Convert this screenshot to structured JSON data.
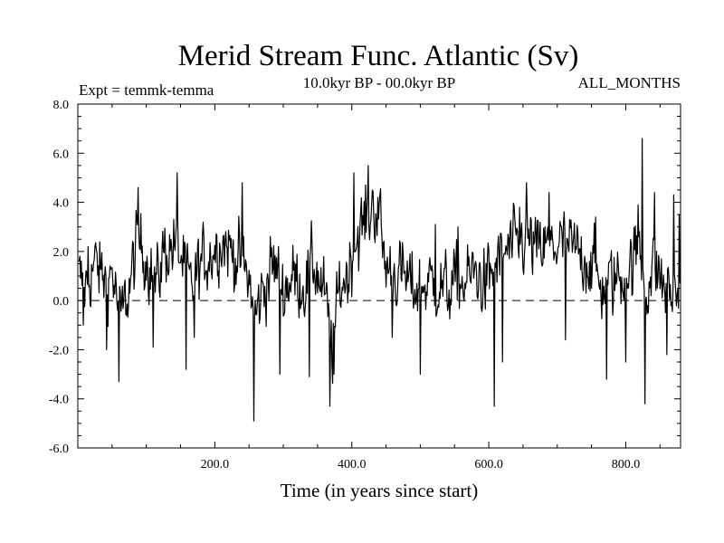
{
  "chart_data": {
    "type": "line",
    "title": "Merid Stream Func. Atlantic (Sv)",
    "subtitle_left": "Expt = temmk-temma",
    "subtitle_center": "10.0kyr BP - 00.0kyr BP",
    "subtitle_right": "ALL_MONTHS",
    "xlabel": "Time (in years since start)",
    "ylabel": "",
    "xlim": [
      0,
      880
    ],
    "ylim": [
      -6.0,
      8.0
    ],
    "x_ticks": [
      200,
      400,
      600,
      800
    ],
    "x_tick_labels": [
      "200.0",
      "400.0",
      "600.0",
      "800.0"
    ],
    "y_ticks": [
      -6,
      -4,
      -2,
      0,
      2,
      4,
      6,
      8
    ],
    "y_tick_labels": [
      "-6.0",
      "-4.0",
      "-2.0",
      "0.0",
      "2.0",
      "4.0",
      "6.0",
      "8.0"
    ],
    "reference_line_y": 0.0,
    "series": [
      {
        "name": "Merid Stream Func. Atlantic",
        "x_start": 1,
        "x_step": 1,
        "anchors": [
          [
            0,
            1.0
          ],
          [
            10,
            0.5
          ],
          [
            25,
            1.5
          ],
          [
            40,
            0.8
          ],
          [
            50,
            1.2
          ],
          [
            62,
            -0.8
          ],
          [
            75,
            0.5
          ],
          [
            88,
            2.5
          ],
          [
            100,
            1.8
          ],
          [
            115,
            0.6
          ],
          [
            125,
            2.0
          ],
          [
            140,
            2.2
          ],
          [
            150,
            1.8
          ],
          [
            165,
            0.5
          ],
          [
            180,
            1.5
          ],
          [
            195,
            2.0
          ],
          [
            210,
            2.5
          ],
          [
            225,
            2.0
          ],
          [
            240,
            1.5
          ],
          [
            252,
            0.6
          ],
          [
            258,
            -0.8
          ],
          [
            270,
            0.4
          ],
          [
            285,
            1.5
          ],
          [
            300,
            0.5
          ],
          [
            315,
            1.0
          ],
          [
            330,
            0.6
          ],
          [
            345,
            1.5
          ],
          [
            360,
            0.2
          ],
          [
            372,
            -2.0
          ],
          [
            382,
            0.5
          ],
          [
            395,
            1.2
          ],
          [
            405,
            2.5
          ],
          [
            420,
            3.2
          ],
          [
            432,
            3.8
          ],
          [
            440,
            3.5
          ],
          [
            448,
            1.5
          ],
          [
            460,
            1.2
          ],
          [
            475,
            1.0
          ],
          [
            490,
            0.5
          ],
          [
            505,
            0.6
          ],
          [
            520,
            0.8
          ],
          [
            540,
            0.4
          ],
          [
            555,
            0.8
          ],
          [
            565,
            0.7
          ],
          [
            580,
            1.2
          ],
          [
            595,
            0.6
          ],
          [
            610,
            1.4
          ],
          [
            625,
            2.0
          ],
          [
            640,
            2.2
          ],
          [
            655,
            2.5
          ],
          [
            670,
            2.0
          ],
          [
            690,
            2.2
          ],
          [
            705,
            2.3
          ],
          [
            720,
            2.1
          ],
          [
            740,
            1.8
          ],
          [
            755,
            1.2
          ],
          [
            765,
            0.5
          ],
          [
            780,
            0.8
          ],
          [
            795,
            1.0
          ],
          [
            810,
            1.5
          ],
          [
            820,
            2.2
          ],
          [
            830,
            0.5
          ],
          [
            842,
            1.5
          ],
          [
            855,
            0.6
          ],
          [
            868,
            0.2
          ],
          [
            880,
            0.5
          ]
        ],
        "spikes": [
          [
            8,
            -1.0
          ],
          [
            15,
            2.2
          ],
          [
            42,
            -2.0
          ],
          [
            60,
            -3.3
          ],
          [
            88,
            4.6
          ],
          [
            110,
            -1.9
          ],
          [
            145,
            5.2
          ],
          [
            158,
            -2.8
          ],
          [
            170,
            -1.5
          ],
          [
            240,
            4.8
          ],
          [
            257,
            -4.9
          ],
          [
            295,
            -3.0
          ],
          [
            338,
            -3.1
          ],
          [
            368,
            -4.3
          ],
          [
            374,
            -3.0
          ],
          [
            403,
            5.2
          ],
          [
            424,
            5.5
          ],
          [
            430,
            4.5
          ],
          [
            438,
            4.2
          ],
          [
            459,
            -1.5
          ],
          [
            500,
            -3.0
          ],
          [
            522,
            3.1
          ],
          [
            555,
            3.0
          ],
          [
            608,
            -4.3
          ],
          [
            620,
            -2.5
          ],
          [
            645,
            3.8
          ],
          [
            655,
            4.8
          ],
          [
            688,
            4.4
          ],
          [
            712,
            -1.6
          ],
          [
            756,
            3.4
          ],
          [
            772,
            -3.2
          ],
          [
            800,
            -2.5
          ],
          [
            818,
            3.9
          ],
          [
            824,
            6.6
          ],
          [
            828,
            -4.2
          ],
          [
            842,
            4.4
          ],
          [
            860,
            -2.2
          ],
          [
            870,
            4.3
          ],
          [
            878,
            3.5
          ]
        ]
      }
    ]
  }
}
